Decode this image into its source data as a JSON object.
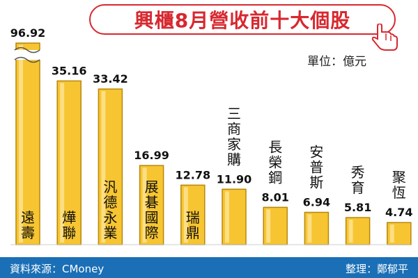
{
  "title": "興櫃8月營收前十大個股",
  "unit_label": "單位：億元",
  "footer": {
    "source": "資料來源：CMoney",
    "editor": "整理：鄭郁平"
  },
  "colors": {
    "accent": "#d7282f",
    "bar_fill": "#f7c531",
    "bar_stroke": "#b8860b",
    "footer_bg": "#1a6fb6"
  },
  "chart_data": {
    "type": "bar",
    "title": "興櫃8月營收前十大個股",
    "ylabel": "",
    "unit": "億元",
    "axis_break_on_first_bar": true,
    "categories": [
      "遠壽",
      "燁聯",
      "汎德永業",
      "展碁國際",
      "瑞鼎",
      "三商家購",
      "長榮鋼",
      "安普斯",
      "秀育",
      "聚恆"
    ],
    "values": [
      96.92,
      35.16,
      33.42,
      16.99,
      12.78,
      11.9,
      8.01,
      6.94,
      5.81,
      4.74
    ],
    "value_labels": [
      "96.92",
      "35.16",
      "33.42",
      "16.99",
      "12.78",
      "11.90",
      "8.01",
      "6.94",
      "5.81",
      "4.74"
    ]
  }
}
